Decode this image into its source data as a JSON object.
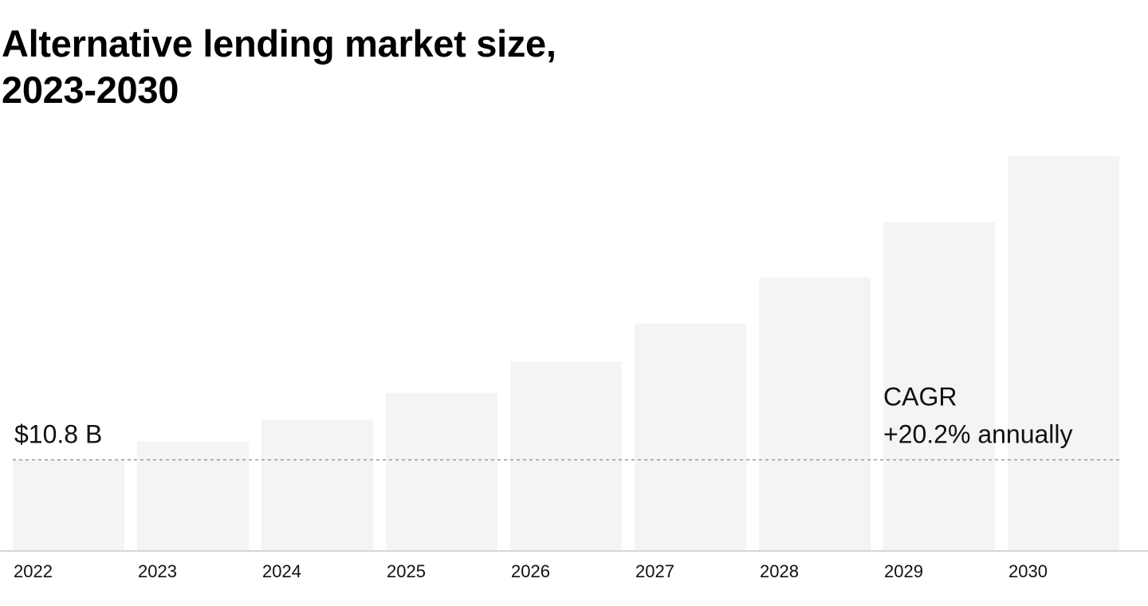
{
  "chart_data": {
    "type": "bar",
    "title_lines": [
      "Alternative lending market size,",
      "2023-2030"
    ],
    "categories": [
      "2022",
      "2023",
      "2024",
      "2025",
      "2026",
      "2027",
      "2028",
      "2029",
      "2030"
    ],
    "values": [
      10.8,
      12.98,
      15.6,
      18.75,
      22.54,
      27.1,
      32.57,
      39.15,
      47.06
    ],
    "unit": "B USD",
    "ylim": [
      0,
      50
    ],
    "grid": false,
    "bar_color": "#f4f4f4",
    "reference_line": {
      "value": 10.8,
      "style": "dotted"
    },
    "annotations": {
      "start_value_label": "$10.8 B",
      "cagr_label": "CAGR",
      "cagr_value": "+20.2% annually"
    }
  }
}
